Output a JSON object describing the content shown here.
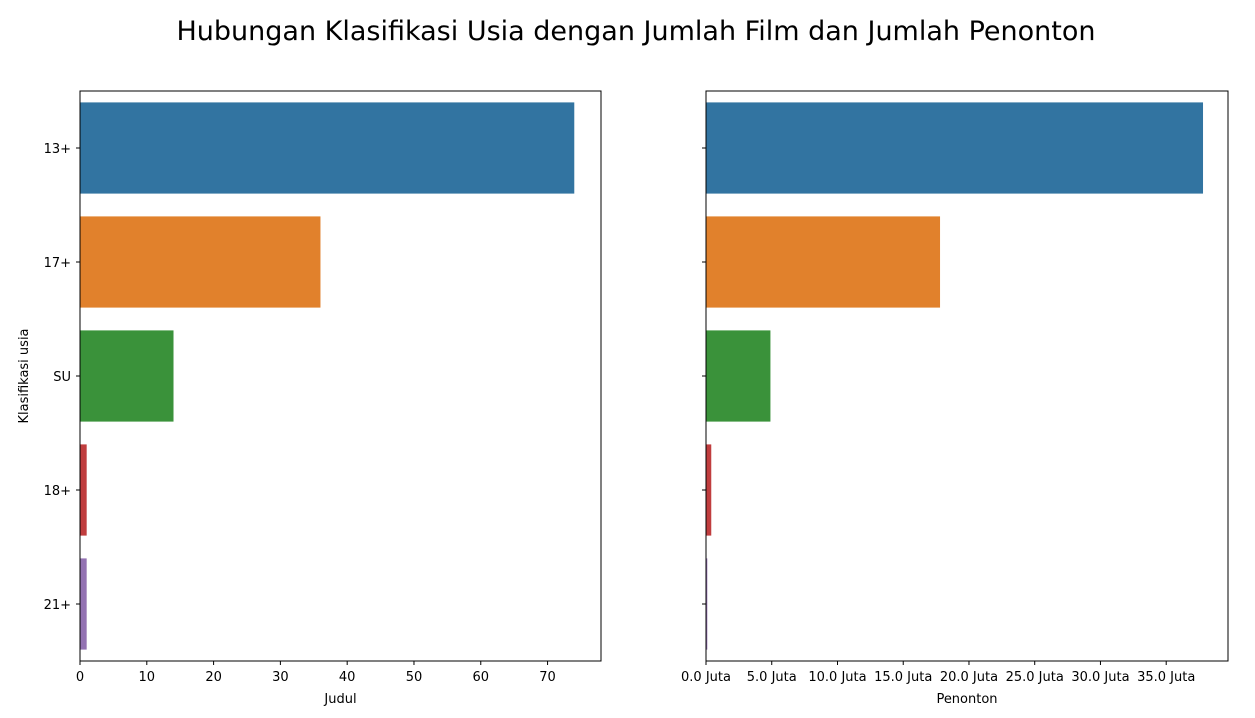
{
  "figure": {
    "suptitle": "Hubungan Klasifikasi Usia dengan Jumlah Film dan Jumlah Penonton"
  },
  "chart_data": [
    {
      "type": "bar",
      "orientation": "horizontal",
      "categories": [
        "13+",
        "17+",
        "SU",
        "18+",
        "21+"
      ],
      "values": [
        74,
        36,
        14,
        1,
        1
      ],
      "colors": [
        "#3274a1",
        "#e1812c",
        "#3a923a",
        "#c03d3e",
        "#9372b2"
      ],
      "xlabel": "Judul",
      "ylabel": "Klasifikasi usia",
      "xlim": [
        0,
        78
      ],
      "xticks": [
        0,
        10,
        20,
        30,
        40,
        50,
        60,
        70
      ],
      "xtick_labels": [
        "0",
        "10",
        "20",
        "30",
        "40",
        "50",
        "60",
        "70"
      ],
      "grid": false
    },
    {
      "type": "bar",
      "orientation": "horizontal",
      "categories": [
        "13+",
        "17+",
        "SU",
        "18+",
        "21+"
      ],
      "values": [
        37800000,
        17800000,
        4900000,
        400000,
        100000
      ],
      "colors": [
        "#3274a1",
        "#e1812c",
        "#3a923a",
        "#c03d3e",
        "#9372b2"
      ],
      "xlabel": "Penonton",
      "ylabel": "",
      "xlim": [
        0,
        39700000
      ],
      "xticks": [
        0,
        5000000,
        10000000,
        15000000,
        20000000,
        25000000,
        30000000,
        35000000
      ],
      "xtick_labels": [
        "0.0 Juta",
        "5.0 Juta",
        "10.0 Juta",
        "15.0 Juta",
        "20.0 Juta",
        "25.0 Juta",
        "30.0 Juta",
        "35.0 Juta"
      ],
      "show_category_labels": false,
      "grid": false
    }
  ]
}
